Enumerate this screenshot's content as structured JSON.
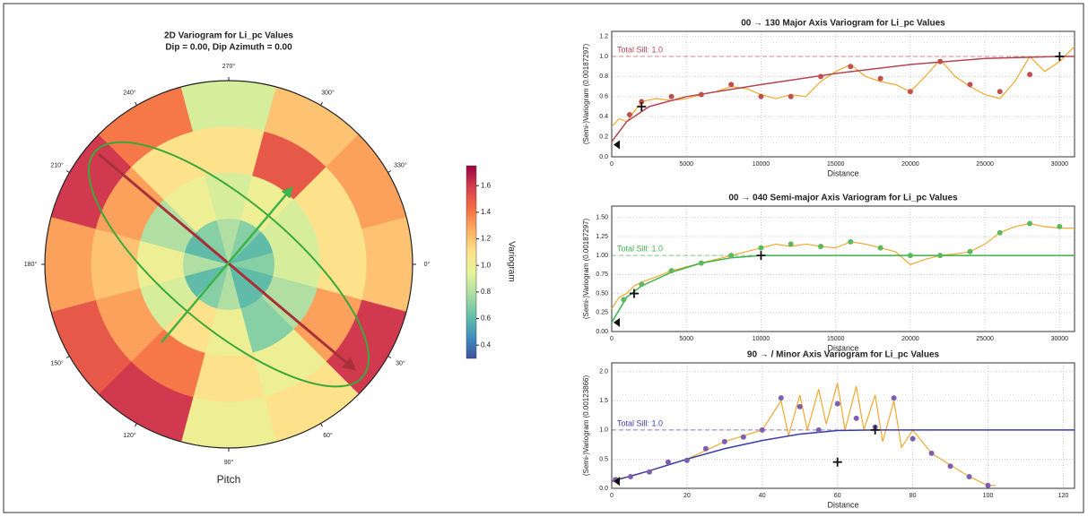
{
  "chart_data": [
    {
      "type": "polar_contour",
      "title": "2D Variogram for Li_pc Values",
      "subtitle": "Dip = 0.00, Dip Azimuth = 0.00",
      "thetaticks": [
        {
          "value": 0,
          "label": "0°"
        },
        {
          "value": 30,
          "label": "30°"
        },
        {
          "value": 60,
          "label": "60°"
        },
        {
          "value": 90,
          "label": "90°"
        },
        {
          "value": 120,
          "label": "120°"
        },
        {
          "value": 150,
          "label": "150°"
        },
        {
          "value": 180,
          "label": "180°"
        },
        {
          "value": 210,
          "label": "210°"
        },
        {
          "value": 240,
          "label": "240°"
        },
        {
          "value": 270,
          "label": "270°"
        },
        {
          "value": 300,
          "label": "300°"
        },
        {
          "value": 330,
          "label": "330°"
        }
      ],
      "radial_label": "Pitch",
      "colorbar_label": "Variogram",
      "clim": [
        0.3,
        1.75
      ],
      "cticks": [
        0.4,
        0.6,
        0.8,
        {
          "value": 1.0,
          "label": "1.0"
        },
        1.2,
        1.4,
        1.6
      ],
      "field": {
        "theta": [
          0,
          30,
          60,
          90,
          120,
          150,
          180,
          210,
          240,
          270,
          300,
          330
        ],
        "r": [
          0.125,
          0.375,
          0.625,
          0.875
        ],
        "values": [
          [
            0.7,
            0.9,
            1.1,
            1.2
          ],
          [
            0.6,
            0.8,
            1.3,
            1.6
          ],
          [
            0.6,
            0.7,
            1.0,
            1.1
          ],
          [
            0.8,
            1.0,
            1.1,
            1.0
          ],
          [
            0.7,
            1.1,
            1.4,
            1.6
          ],
          [
            0.6,
            0.9,
            1.3,
            1.5
          ],
          [
            0.8,
            1.0,
            1.2,
            1.3
          ],
          [
            0.6,
            0.8,
            1.3,
            1.6
          ],
          [
            0.7,
            1.0,
            1.1,
            1.4
          ],
          [
            0.8,
            0.9,
            1.1,
            0.9
          ],
          [
            0.7,
            1.0,
            1.5,
            1.2
          ],
          [
            0.6,
            0.9,
            1.1,
            1.3
          ]
        ]
      }
    },
    {
      "type": "line",
      "title": "00 → 130 Major Axis Variogram for Li_pc Values",
      "xlabel": "Distance",
      "ylabel": "(Semi-)Variogram (0.00187297)",
      "xlim": [
        0,
        31000
      ],
      "ylim": [
        0,
        1.25
      ],
      "xticks": [
        0,
        5000,
        10000,
        15000,
        20000,
        25000,
        30000
      ],
      "yticks": [
        {
          "value": 0,
          "label": "0.0"
        },
        0.2,
        0.4,
        0.6,
        0.8,
        {
          "value": 1,
          "label": "1.0"
        },
        1.2
      ],
      "sill": 1.0,
      "sill_label": "Total Sill: 1.0",
      "color": "#b5444f",
      "raw": {
        "color": "#f0a830",
        "x": [
          0,
          500,
          1000,
          1500,
          2000,
          3000,
          4000,
          5000,
          6000,
          7000,
          8000,
          9000,
          10000,
          11000,
          12000,
          13000,
          14000,
          15000,
          16000,
          17000,
          18000,
          19000,
          20000,
          21000,
          22000,
          23000,
          24000,
          25000,
          26000,
          27000,
          28000,
          29000,
          30000,
          31000
        ],
        "values": [
          0.3,
          0.38,
          0.35,
          0.45,
          0.55,
          0.58,
          0.56,
          0.58,
          0.62,
          0.65,
          0.7,
          0.68,
          0.62,
          0.58,
          0.62,
          0.6,
          0.75,
          0.85,
          0.92,
          0.8,
          0.75,
          0.72,
          0.65,
          0.8,
          0.97,
          0.8,
          0.7,
          0.62,
          0.58,
          0.75,
          1.0,
          0.85,
          0.95,
          1.1
        ]
      },
      "model": {
        "x": [
          0,
          1000,
          2500,
          5000,
          10000,
          15000,
          20000,
          25000,
          30000,
          31000
        ],
        "values": [
          0.15,
          0.35,
          0.5,
          0.6,
          0.72,
          0.83,
          0.92,
          0.98,
          1.0,
          1.0
        ]
      },
      "points": {
        "color": "#c0504d",
        "x": [
          1200,
          2000,
          4000,
          6000,
          8000,
          10000,
          12000,
          14000,
          16000,
          18000,
          20000,
          22000,
          24000,
          26000,
          28000
        ],
        "values": [
          0.42,
          0.55,
          0.6,
          0.62,
          0.72,
          0.6,
          0.6,
          0.8,
          0.9,
          0.78,
          0.65,
          0.95,
          0.72,
          0.65,
          0.82
        ]
      },
      "plus_markers": {
        "x": [
          2000,
          30000
        ],
        "values": [
          0.5,
          1.0
        ]
      },
      "triangle": {
        "x": [
          0
        ],
        "values": [
          0.12
        ]
      }
    },
    {
      "type": "line",
      "title": "00 → 040 Semi-major Axis Variogram for Li_pc Values",
      "xlabel": "Distance",
      "ylabel": "(Semi-)Variogram (0.00187297)",
      "xlim": [
        0,
        31000
      ],
      "ylim": [
        0,
        1.65
      ],
      "xticks": [
        0,
        5000,
        10000,
        15000,
        20000,
        25000,
        30000
      ],
      "yticks": [
        {
          "value": 0,
          "label": "0.00"
        },
        0.25,
        {
          "value": 0.5,
          "label": "0.50"
        },
        0.75,
        {
          "value": 1,
          "label": "1.00"
        },
        1.25,
        {
          "value": 1.5,
          "label": "1.50"
        }
      ],
      "sill": 1.0,
      "sill_label": "Total Sill: 1.0",
      "color": "#3cb34a",
      "raw": {
        "color": "#f0a830",
        "x": [
          0,
          500,
          1000,
          1500,
          2000,
          3000,
          4000,
          5000,
          6000,
          7000,
          8000,
          9000,
          10000,
          11000,
          12000,
          13000,
          14000,
          15000,
          16000,
          17000,
          18000,
          19000,
          20000,
          21000,
          22000,
          23000,
          24000,
          25000,
          26000,
          27000,
          28000,
          29000,
          30000,
          31000
        ],
        "values": [
          0.3,
          0.45,
          0.5,
          0.6,
          0.65,
          0.72,
          0.8,
          0.85,
          0.9,
          0.95,
          1.0,
          1.05,
          1.1,
          1.15,
          1.12,
          1.15,
          1.12,
          1.1,
          1.18,
          1.15,
          1.1,
          1.05,
          0.88,
          0.95,
          1.0,
          1.02,
          1.05,
          1.15,
          1.3,
          1.38,
          1.42,
          1.38,
          1.36,
          1.36
        ]
      },
      "model": {
        "x": [
          0,
          1000,
          2000,
          4000,
          6000,
          8000,
          10000,
          31000
        ],
        "values": [
          0.12,
          0.45,
          0.6,
          0.78,
          0.9,
          0.97,
          1.0,
          1.0
        ]
      },
      "points": {
        "color": "#5cb85c",
        "x": [
          800,
          2000,
          4000,
          6000,
          8000,
          10000,
          12000,
          14000,
          16000,
          18000,
          20000,
          22000,
          24000,
          26000,
          28000,
          30000
        ],
        "values": [
          0.42,
          0.62,
          0.8,
          0.9,
          1.0,
          1.1,
          1.15,
          1.12,
          1.18,
          1.1,
          1.0,
          1.0,
          1.05,
          1.3,
          1.42,
          1.38
        ]
      },
      "plus_markers": {
        "x": [
          1500,
          10000
        ],
        "values": [
          0.5,
          1.0
        ]
      },
      "triangle": {
        "x": [
          0
        ],
        "values": [
          0.12
        ]
      }
    },
    {
      "type": "line",
      "title": "90 → / Minor Axis Variogram for Li_pc Values",
      "xlabel": "Distance",
      "ylabel": "(Semi-)Variogram (0.00123866)",
      "xlim": [
        0,
        123
      ],
      "ylim": [
        0,
        2.15
      ],
      "xticks": [
        0,
        20,
        40,
        60,
        80,
        100,
        120
      ],
      "yticks": [
        {
          "value": 0,
          "label": "0.0"
        },
        0.5,
        {
          "value": 1,
          "label": "1.0"
        },
        1.5,
        {
          "value": 2,
          "label": "2.0"
        }
      ],
      "sill": 1.0,
      "sill_label": "Total Sill: 1.0",
      "color": "#3b3bb0",
      "raw": {
        "color": "#f0a830",
        "x": [
          0,
          5,
          10,
          15,
          20,
          25,
          30,
          35,
          40,
          45,
          47,
          50,
          52,
          55,
          57,
          60,
          62,
          65,
          67,
          70,
          72,
          75,
          77,
          80,
          85,
          90,
          95,
          100,
          102
        ],
        "values": [
          0.15,
          0.2,
          0.3,
          0.4,
          0.5,
          0.65,
          0.8,
          0.9,
          1.0,
          1.5,
          0.9,
          1.6,
          1.0,
          1.7,
          1.1,
          1.8,
          1.0,
          1.75,
          1.0,
          1.6,
          0.8,
          1.5,
          0.7,
          1.0,
          0.6,
          0.4,
          0.2,
          0.05,
          0.05
        ]
      },
      "model": {
        "x": [
          0,
          10,
          20,
          30,
          40,
          50,
          60,
          70,
          123
        ],
        "values": [
          0.12,
          0.3,
          0.5,
          0.68,
          0.82,
          0.93,
          0.99,
          1.0,
          1.0
        ]
      },
      "points": {
        "color": "#7d5fb0",
        "x": [
          1,
          5,
          10,
          15,
          20,
          25,
          30,
          35,
          40,
          45,
          50,
          55,
          60,
          65,
          70,
          75,
          80,
          85,
          90,
          95,
          100
        ],
        "values": [
          0.15,
          0.2,
          0.28,
          0.45,
          0.48,
          0.68,
          0.8,
          0.88,
          1.0,
          1.55,
          1.4,
          1.0,
          1.45,
          1.2,
          1.05,
          1.55,
          0.85,
          0.6,
          0.38,
          0.2,
          0.05
        ]
      },
      "plus_markers": {
        "x": [
          60,
          70
        ],
        "values": [
          0.45,
          1.0
        ]
      },
      "triangle": {
        "x": [
          0
        ],
        "values": [
          0.12
        ]
      }
    }
  ]
}
